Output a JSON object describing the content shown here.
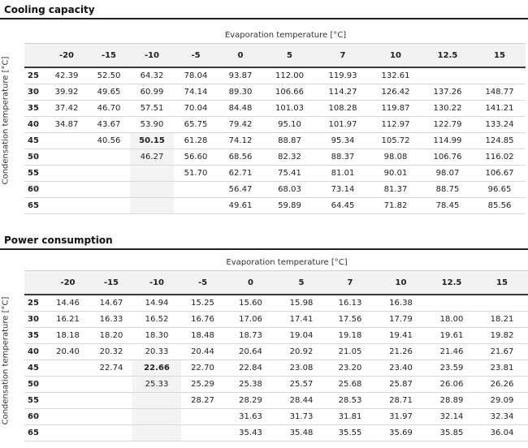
{
  "cooling": {
    "title": "Cooling capacity",
    "col_group": "Evaporation temperature [°C]",
    "row_group": "Condensation temperature [°C]",
    "columns": [
      "-20",
      "-15",
      "-10",
      "-5",
      "0",
      "5",
      "7",
      "10",
      "12.5",
      "15"
    ],
    "rows": [
      {
        "label": "25",
        "cells": [
          "42.39",
          "52.50",
          "64.32",
          "78.04",
          "93.87",
          "112.00",
          "119.93",
          "132.61",
          "",
          ""
        ]
      },
      {
        "label": "30",
        "cells": [
          "39.92",
          "49.65",
          "60.99",
          "74.14",
          "89.30",
          "106.66",
          "114.27",
          "126.42",
          "137.26",
          "148.77"
        ]
      },
      {
        "label": "35",
        "cells": [
          "37.42",
          "46.70",
          "57.51",
          "70.04",
          "84.48",
          "101.03",
          "108.28",
          "119.87",
          "130.22",
          "141.21"
        ]
      },
      {
        "label": "40",
        "cells": [
          "34.87",
          "43.67",
          "53.90",
          "65.75",
          "79.42",
          "95.10",
          "101.97",
          "112.97",
          "122.79",
          "133.24"
        ]
      },
      {
        "label": "45",
        "cells": [
          "",
          "40.56",
          "50.15",
          "61.28",
          "74.12",
          "88.87",
          "95.34",
          "105.72",
          "114.99",
          "124.85"
        ]
      },
      {
        "label": "50",
        "cells": [
          "",
          "",
          "46.27",
          "56.60",
          "68.56",
          "82.32",
          "88.37",
          "98.08",
          "106.76",
          "116.02"
        ]
      },
      {
        "label": "55",
        "cells": [
          "",
          "",
          "",
          "51.70",
          "62.71",
          "75.41",
          "81.01",
          "90.01",
          "98.07",
          "106.67"
        ]
      },
      {
        "label": "60",
        "cells": [
          "",
          "",
          "",
          "",
          "56.47",
          "68.03",
          "73.14",
          "81.37",
          "88.75",
          "96.65"
        ]
      },
      {
        "label": "65",
        "cells": [
          "",
          "",
          "",
          "",
          "49.61",
          "59.89",
          "64.45",
          "71.82",
          "78.45",
          "85.56"
        ]
      }
    ]
  },
  "power": {
    "title": "Power consumption",
    "col_group": "Evaporation temperature [°C]",
    "row_group": "Condensation temperature [°C]",
    "columns": [
      "-20",
      "-15",
      "-10",
      "-5",
      "0",
      "5",
      "7",
      "10",
      "12.5",
      "15"
    ],
    "rows": [
      {
        "label": "25",
        "cells": [
          "14.46",
          "14.67",
          "14.94",
          "15.25",
          "15.60",
          "15.98",
          "16.13",
          "16.38",
          "",
          ""
        ]
      },
      {
        "label": "30",
        "cells": [
          "16.21",
          "16.33",
          "16.52",
          "16.76",
          "17.06",
          "17.41",
          "17.56",
          "17.79",
          "18.00",
          "18.21"
        ]
      },
      {
        "label": "35",
        "cells": [
          "18.18",
          "18.20",
          "18.30",
          "18.48",
          "18.73",
          "19.04",
          "19.18",
          "19.41",
          "19.61",
          "19.82"
        ]
      },
      {
        "label": "40",
        "cells": [
          "20.40",
          "20.32",
          "20.33",
          "20.44",
          "20.64",
          "20.92",
          "21.05",
          "21.26",
          "21.46",
          "21.67"
        ]
      },
      {
        "label": "45",
        "cells": [
          "",
          "22.74",
          "22.66",
          "22.70",
          "22.84",
          "23.08",
          "23.20",
          "23.40",
          "23.59",
          "23.81"
        ]
      },
      {
        "label": "50",
        "cells": [
          "",
          "",
          "25.33",
          "25.29",
          "25.38",
          "25.57",
          "25.68",
          "25.87",
          "26.06",
          "26.26"
        ]
      },
      {
        "label": "55",
        "cells": [
          "",
          "",
          "",
          "28.27",
          "28.29",
          "28.44",
          "28.53",
          "28.71",
          "28.89",
          "29.09"
        ]
      },
      {
        "label": "60",
        "cells": [
          "",
          "",
          "",
          "",
          "31.63",
          "31.73",
          "31.81",
          "31.97",
          "32.14",
          "32.34"
        ]
      },
      {
        "label": "65",
        "cells": [
          "",
          "",
          "",
          "",
          "35.43",
          "35.48",
          "35.55",
          "35.69",
          "35.85",
          "36.04"
        ]
      }
    ]
  }
}
